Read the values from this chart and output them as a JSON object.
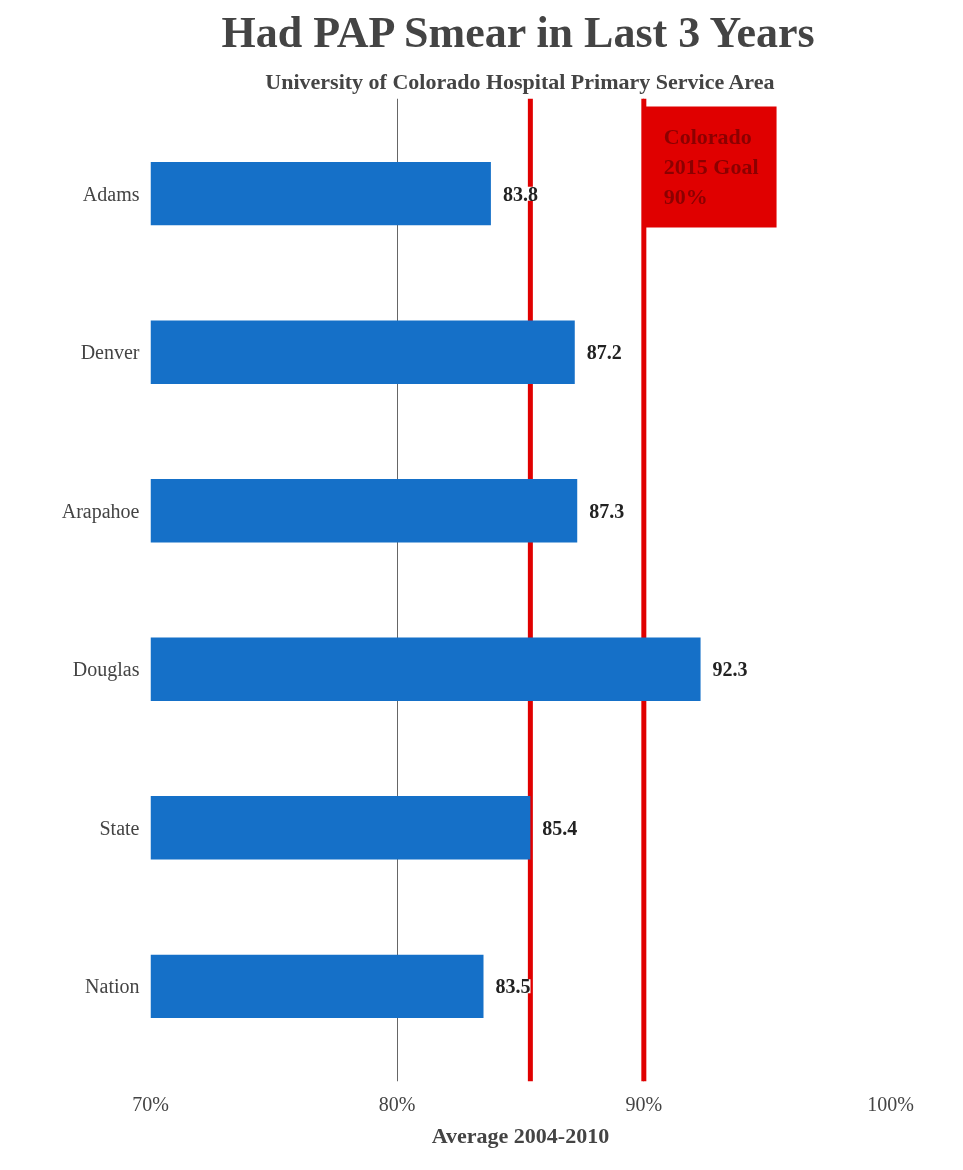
{
  "chart_data": {
    "type": "bar",
    "orientation": "horizontal",
    "title": "Had PAP Smear in Last 3 Years",
    "subtitle": "University of Colorado Hospital Primary Service Area",
    "xlabel": "Average 2004-2010",
    "categories": [
      "Adams",
      "Denver",
      "Arapahoe",
      "Douglas",
      "State",
      "Nation"
    ],
    "values": [
      83.8,
      87.2,
      87.3,
      92.3,
      85.4,
      83.5
    ],
    "color": "#1570c8",
    "data_labels": true,
    "xlim": [
      70,
      100
    ],
    "xticks": [
      {
        "value": 70,
        "label": "70%"
      },
      {
        "value": 80,
        "label": "80%"
      },
      {
        "value": 90,
        "label": "90%"
      },
      {
        "value": 100,
        "label": "100%"
      }
    ],
    "grid": "x",
    "ref_lines": [
      {
        "axis": "x",
        "value": 85.4,
        "color": "#e00000"
      },
      {
        "axis": "x",
        "value": 90,
        "color": "#e00000",
        "label": "Colorado\n2015 Goal\n90%"
      }
    ]
  }
}
